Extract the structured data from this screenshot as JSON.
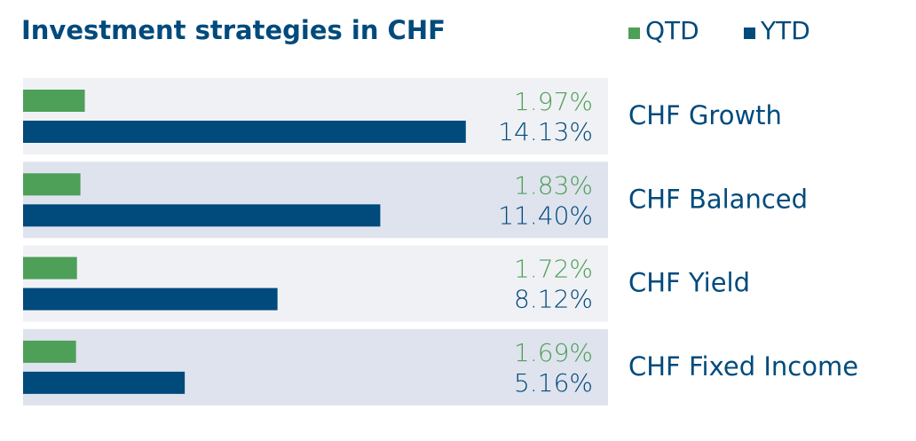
{
  "chart_data": {
    "type": "bar",
    "orientation": "horizontal",
    "title": "Investment strategies in CHF",
    "categories": [
      "CHF Growth",
      "CHF Balanced",
      "CHF Yield",
      "CHF Fixed Income"
    ],
    "series": [
      {
        "name": "QTD",
        "color": "#4e9f58",
        "values": [
          1.97,
          1.83,
          1.72,
          1.69
        ],
        "value_labels": [
          "1.97%",
          "1.83%",
          "1.72%",
          "1.69%"
        ]
      },
      {
        "name": "YTD",
        "color": "#004a7c",
        "values": [
          14.13,
          11.4,
          8.12,
          5.16
        ],
        "value_labels": [
          "14.13%",
          "11.40%",
          "8.12%",
          "5.16%"
        ]
      }
    ],
    "legend": "top-right"
  }
}
